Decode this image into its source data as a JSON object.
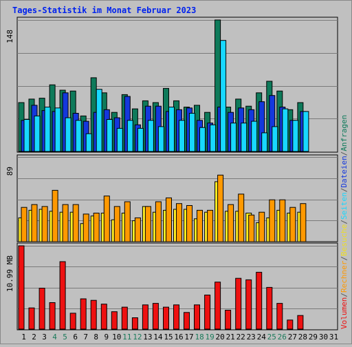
{
  "chart_data": {
    "type": "bar",
    "title": "Tages-Statistik im Monat Februar 2023",
    "x_ticks": [
      "1",
      "2",
      "3",
      "4",
      "5",
      "6",
      "7",
      "8",
      "9",
      "10",
      "11",
      "12",
      "13",
      "14",
      "15",
      "16",
      "17",
      "18",
      "19",
      "20",
      "21",
      "22",
      "23",
      "24",
      "25",
      "26",
      "27",
      "28",
      "29",
      "30",
      "31"
    ],
    "weekend_days": [
      4,
      5,
      11,
      12,
      18,
      19,
      25,
      26
    ],
    "panels": [
      {
        "id": "hits",
        "ytick_label": "148",
        "ylim": [
          0,
          148
        ],
        "series": [
          {
            "name": "Anfragen",
            "color": "#0e7a5a",
            "values": [
              55,
              59,
              60,
              75,
              69,
              68,
              40,
              83,
              66,
              44,
              64,
              48,
              57,
              55,
              71,
              57,
              50,
              52,
              44,
              148,
              50,
              59,
              51,
              66,
              79,
              68,
              47,
              55,
              0,
              0,
              0
            ]
          },
          {
            "name": "Dateien",
            "color": "#1438dd",
            "values": [
              35,
              52,
              46,
              45,
              66,
              43,
              34,
              44,
              47,
              38,
              62,
              30,
              51,
              51,
              45,
              47,
              49,
              35,
              32,
              50,
              44,
              49,
              47,
              56,
              63,
              50,
              35,
              45,
              0,
              0,
              0
            ]
          },
          {
            "name": "Seiten",
            "color": "#18d8ff",
            "values": [
              36,
              40,
              50,
              49,
              38,
              35,
              20,
              70,
              36,
              26,
              35,
              26,
              35,
              28,
              50,
              35,
              43,
              27,
              30,
              125,
              32,
              32,
              34,
              21,
              28,
              48,
              35,
              45,
              0,
              0,
              0
            ]
          }
        ]
      },
      {
        "id": "visits",
        "ytick_label": "89",
        "ylim": [
          0,
          89
        ],
        "series": [
          {
            "name": "Besuche",
            "color": "#ffee22",
            "values": [
              25,
              33,
              34,
              32,
              31,
              31,
              19,
              27,
              30,
              23,
              30,
              22,
              37,
              31,
              33,
              34,
              34,
              24,
              31,
              63,
              32,
              32,
              30,
              20,
              25,
              33,
              30,
              31,
              0,
              0,
              0
            ]
          },
          {
            "name": "Rechner",
            "color": "#ff9900",
            "values": [
              36,
              39,
              37,
              54,
              39,
              39,
              29,
              30,
              48,
              37,
              42,
              25,
              37,
              42,
              46,
              40,
              38,
              33,
              33,
              70,
              39,
              50,
              28,
              31,
              44,
              44,
              36,
              40,
              0,
              0,
              0
            ]
          }
        ]
      },
      {
        "id": "volume",
        "ytick_label": "10.99 MB",
        "ylim": [
          0,
          10.99
        ],
        "series": [
          {
            "name": "Volumen",
            "color": "#ee1111",
            "values": [
              10.99,
              2.8,
              5.4,
              3.5,
              8.9,
              2.1,
              4.0,
              3.8,
              3.3,
              2.3,
              2.9,
              1.5,
              3.2,
              3.4,
              2.9,
              3.2,
              2.2,
              3.2,
              4.5,
              6.2,
              2.5,
              6.7,
              6.5,
              7.5,
              5.5,
              3.4,
              1.2,
              1.8,
              0,
              0,
              0
            ]
          }
        ]
      }
    ],
    "right_legend": [
      {
        "text": "Volumen",
        "color": "#ee1111"
      },
      {
        "text": "/",
        "color": "#555555"
      },
      {
        "text": "Rechner",
        "color": "#ff9900"
      },
      {
        "text": "/",
        "color": "#555555"
      },
      {
        "text": "Besuche",
        "color": "#eedd22"
      },
      {
        "text": "/",
        "color": "#555555"
      },
      {
        "text": "Seiten",
        "color": "#18d8ff"
      },
      {
        "text": "/",
        "color": "#555555"
      },
      {
        "text": "Dateien",
        "color": "#1438dd"
      },
      {
        "text": "/",
        "color": "#555555"
      },
      {
        "text": "Anfragen",
        "color": "#0e7a5a"
      }
    ],
    "colors": {
      "title": "#0022ee",
      "weekday_tick": "#000000",
      "weekend_tick": "#1a7a5a",
      "background": "#c0c0c0",
      "grid": "#7a7a7a",
      "frame": "#000000"
    }
  }
}
